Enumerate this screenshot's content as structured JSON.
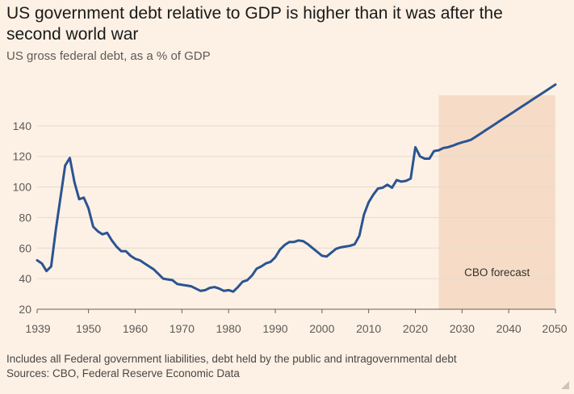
{
  "header": {
    "title": "US government debt relative to GDP is higher than it was after the second world war",
    "subtitle": "US gross federal debt, as a % of GDP"
  },
  "footer": {
    "note": "Includes all Federal government liabilities, debt held by the public and intragovernmental debt",
    "source": "Sources: CBO, Federal Reserve Economic Data"
  },
  "colors": {
    "background": "#fdf1e5",
    "line": "#2b5492",
    "forecast_shade": "#f6dcc6",
    "grid": "#e6d9ce"
  },
  "chart_data": {
    "type": "line",
    "title": "US government debt relative to GDP is higher than it was after the second world war",
    "subtitle": "US gross federal debt, as a % of GDP",
    "xlabel": "",
    "ylabel": "",
    "xlim": [
      1939,
      2050
    ],
    "ylim": [
      20,
      160
    ],
    "xticks": [
      1939,
      1950,
      1960,
      1970,
      1980,
      1990,
      2000,
      2010,
      2020,
      2030,
      2040,
      2050
    ],
    "yticks": [
      20,
      40,
      60,
      80,
      100,
      120,
      140
    ],
    "grid": true,
    "annotations": [
      {
        "text": "CBO forecast",
        "x_start": 2025,
        "x_end": 2050
      }
    ],
    "series": [
      {
        "x": [
          1939,
          1940,
          1941,
          1942,
          1943,
          1944,
          1945,
          1946,
          1947,
          1948,
          1949,
          1950,
          1951,
          1952,
          1953,
          1954,
          1955,
          1956,
          1957,
          1958,
          1959,
          1960,
          1961,
          1962,
          1963,
          1964,
          1965,
          1966,
          1967,
          1968,
          1969,
          1970,
          1971,
          1972,
          1973,
          1974,
          1975,
          1976,
          1977,
          1978,
          1979,
          1980,
          1981,
          1982,
          1983,
          1984,
          1985,
          1986,
          1987,
          1988,
          1989,
          1990,
          1991,
          1992,
          1993,
          1994,
          1995,
          1996,
          1997,
          1998,
          1999,
          2000,
          2001,
          2002,
          2003,
          2004,
          2005,
          2006,
          2007,
          2008,
          2009,
          2010,
          2011,
          2012,
          2013,
          2014,
          2015,
          2016,
          2017,
          2018,
          2019,
          2020,
          2021,
          2022,
          2023,
          2024,
          2025,
          2026,
          2027,
          2028,
          2029,
          2030,
          2031,
          2032,
          2033,
          2034,
          2035,
          2036,
          2037,
          2038,
          2039,
          2040,
          2041,
          2042,
          2043,
          2044,
          2045,
          2046,
          2047,
          2048,
          2049,
          2050
        ],
        "values": [
          52,
          50,
          45,
          48,
          72,
          93,
          114,
          119,
          103,
          92,
          93,
          86,
          74,
          71,
          69,
          70,
          65,
          61,
          58,
          58,
          55,
          53,
          52,
          50,
          48,
          46,
          43,
          40,
          39.5,
          39,
          36.5,
          36,
          35.5,
          35,
          33.5,
          32,
          32.5,
          34,
          34.5,
          33.5,
          32,
          32.5,
          31.5,
          34.5,
          38,
          39,
          42,
          46.5,
          48,
          50,
          51,
          54,
          59,
          62,
          64,
          64,
          65,
          64.5,
          62.5,
          60,
          57.5,
          55,
          54.5,
          57,
          59.5,
          60.5,
          61,
          61.5,
          62.5,
          68,
          82,
          90,
          95,
          99,
          99.5,
          101.5,
          99.5,
          104.5,
          103.5,
          104,
          105.5,
          126,
          120,
          118.5,
          118.5,
          123.5,
          124,
          125.5,
          126,
          127,
          128.2,
          129.2,
          130,
          131,
          133,
          135,
          137,
          139,
          141,
          143,
          145,
          147,
          149,
          151,
          153,
          155,
          157,
          159,
          161,
          163,
          165,
          167
        ]
      }
    ]
  }
}
